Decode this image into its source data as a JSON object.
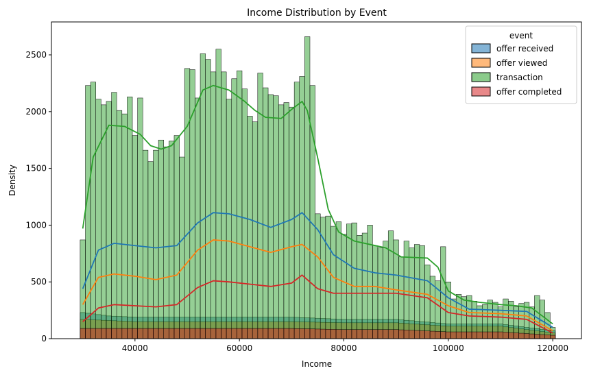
{
  "chart_data": {
    "type": "histogram",
    "title": "Income Distribution by Event",
    "xlabel": "Income",
    "ylabel": "Density",
    "xlim": [
      24000,
      125500
    ],
    "ylim": [
      0,
      2790
    ],
    "xticks": [
      40000,
      60000,
      80000,
      100000,
      120000
    ],
    "yticks": [
      0,
      500,
      1000,
      1500,
      2000,
      2500
    ],
    "bins": {
      "start": 30000,
      "end": 120000,
      "count": 91
    },
    "legend": {
      "title": "event",
      "placement": "upper right"
    },
    "series": [
      {
        "name": "offer received",
        "color": "#1f77b4",
        "kde": [
          [
            30000,
            440
          ],
          [
            33000,
            780
          ],
          [
            36000,
            840
          ],
          [
            40000,
            820
          ],
          [
            44000,
            800
          ],
          [
            48000,
            820
          ],
          [
            52000,
            1020
          ],
          [
            55000,
            1110
          ],
          [
            58000,
            1100
          ],
          [
            62000,
            1050
          ],
          [
            66000,
            980
          ],
          [
            70000,
            1050
          ],
          [
            72000,
            1110
          ],
          [
            75000,
            960
          ],
          [
            78000,
            740
          ],
          [
            82000,
            620
          ],
          [
            86000,
            580
          ],
          [
            90000,
            560
          ],
          [
            96000,
            510
          ],
          [
            100000,
            360
          ],
          [
            104000,
            260
          ],
          [
            110000,
            250
          ],
          [
            115000,
            240
          ],
          [
            120000,
            100
          ]
        ],
        "counts": [
          [
            30000,
            230
          ],
          [
            35000,
            200
          ],
          [
            40000,
            190
          ],
          [
            50000,
            190
          ],
          [
            60000,
            190
          ],
          [
            70000,
            190
          ],
          [
            80000,
            170
          ],
          [
            90000,
            170
          ],
          [
            100000,
            130
          ],
          [
            110000,
            130
          ],
          [
            120000,
            70
          ]
        ]
      },
      {
        "name": "offer viewed",
        "color": "#ff7f0e",
        "kde": [
          [
            30000,
            300
          ],
          [
            33000,
            540
          ],
          [
            36000,
            570
          ],
          [
            40000,
            550
          ],
          [
            44000,
            520
          ],
          [
            48000,
            560
          ],
          [
            52000,
            780
          ],
          [
            55000,
            870
          ],
          [
            58000,
            860
          ],
          [
            62000,
            810
          ],
          [
            66000,
            760
          ],
          [
            70000,
            810
          ],
          [
            72000,
            830
          ],
          [
            75000,
            720
          ],
          [
            78000,
            540
          ],
          [
            82000,
            460
          ],
          [
            86000,
            460
          ],
          [
            90000,
            430
          ],
          [
            96000,
            390
          ],
          [
            100000,
            290
          ],
          [
            104000,
            230
          ],
          [
            110000,
            220
          ],
          [
            115000,
            200
          ],
          [
            120000,
            70
          ]
        ],
        "counts": [
          [
            30000,
            170
          ],
          [
            40000,
            150
          ],
          [
            50000,
            150
          ],
          [
            60000,
            150
          ],
          [
            70000,
            150
          ],
          [
            80000,
            140
          ],
          [
            90000,
            140
          ],
          [
            100000,
            110
          ],
          [
            110000,
            110
          ],
          [
            120000,
            50
          ]
        ]
      },
      {
        "name": "transaction",
        "color": "#2ca02c",
        "kde": [
          [
            30000,
            970
          ],
          [
            32000,
            1600
          ],
          [
            35000,
            1880
          ],
          [
            38000,
            1870
          ],
          [
            41000,
            1800
          ],
          [
            43000,
            1700
          ],
          [
            45000,
            1670
          ],
          [
            47000,
            1700
          ],
          [
            50000,
            1870
          ],
          [
            53000,
            2190
          ],
          [
            55000,
            2230
          ],
          [
            58000,
            2190
          ],
          [
            61000,
            2090
          ],
          [
            63000,
            2010
          ],
          [
            65000,
            1950
          ],
          [
            68000,
            1940
          ],
          [
            70000,
            2020
          ],
          [
            72000,
            2090
          ],
          [
            73000,
            2010
          ],
          [
            75000,
            1590
          ],
          [
            77000,
            1140
          ],
          [
            79000,
            940
          ],
          [
            82000,
            860
          ],
          [
            85000,
            830
          ],
          [
            88000,
            800
          ],
          [
            91000,
            720
          ],
          [
            96000,
            710
          ],
          [
            98000,
            630
          ],
          [
            100000,
            420
          ],
          [
            103000,
            340
          ],
          [
            106000,
            320
          ],
          [
            110000,
            300
          ],
          [
            113000,
            290
          ],
          [
            116000,
            270
          ],
          [
            120000,
            130
          ]
        ],
        "counts": [
          [
            30000,
            870
          ],
          [
            31000,
            2230
          ],
          [
            32000,
            2260
          ],
          [
            33000,
            2110
          ],
          [
            34000,
            2060
          ],
          [
            35000,
            2090
          ],
          [
            36000,
            2170
          ],
          [
            37000,
            2010
          ],
          [
            38000,
            1980
          ],
          [
            39000,
            2130
          ],
          [
            40000,
            1790
          ],
          [
            41000,
            2120
          ],
          [
            42000,
            1660
          ],
          [
            43000,
            1560
          ],
          [
            44000,
            1660
          ],
          [
            45000,
            1750
          ],
          [
            46000,
            1690
          ],
          [
            47000,
            1740
          ],
          [
            48000,
            1790
          ],
          [
            49000,
            1600
          ],
          [
            50000,
            2380
          ],
          [
            51000,
            2370
          ],
          [
            52000,
            2120
          ],
          [
            53000,
            2510
          ],
          [
            54000,
            2460
          ],
          [
            55000,
            2350
          ],
          [
            56000,
            2550
          ],
          [
            57000,
            2350
          ],
          [
            58000,
            2110
          ],
          [
            59000,
            2290
          ],
          [
            60000,
            2360
          ],
          [
            61000,
            2200
          ],
          [
            62000,
            1960
          ],
          [
            63000,
            1910
          ],
          [
            64000,
            2340
          ],
          [
            65000,
            2210
          ],
          [
            66000,
            2150
          ],
          [
            67000,
            2140
          ],
          [
            68000,
            2060
          ],
          [
            69000,
            2080
          ],
          [
            70000,
            2040
          ],
          [
            71000,
            2260
          ],
          [
            72000,
            2310
          ],
          [
            73000,
            2660
          ],
          [
            74000,
            2230
          ],
          [
            75000,
            1100
          ],
          [
            76000,
            1070
          ],
          [
            77000,
            1080
          ],
          [
            78000,
            990
          ],
          [
            79000,
            1030
          ],
          [
            80000,
            920
          ],
          [
            81000,
            1010
          ],
          [
            82000,
            1020
          ],
          [
            83000,
            910
          ],
          [
            84000,
            930
          ],
          [
            85000,
            1000
          ],
          [
            86000,
            820
          ],
          [
            87000,
            800
          ],
          [
            88000,
            860
          ],
          [
            89000,
            950
          ],
          [
            90000,
            870
          ],
          [
            91000,
            720
          ],
          [
            92000,
            860
          ],
          [
            93000,
            800
          ],
          [
            94000,
            830
          ],
          [
            95000,
            820
          ],
          [
            96000,
            650
          ],
          [
            97000,
            550
          ],
          [
            98000,
            510
          ],
          [
            99000,
            810
          ],
          [
            100000,
            500
          ],
          [
            101000,
            350
          ],
          [
            102000,
            390
          ],
          [
            103000,
            370
          ],
          [
            104000,
            380
          ],
          [
            105000,
            330
          ],
          [
            106000,
            290
          ],
          [
            107000,
            300
          ],
          [
            108000,
            340
          ],
          [
            109000,
            320
          ],
          [
            110000,
            280
          ],
          [
            111000,
            350
          ],
          [
            112000,
            330
          ],
          [
            113000,
            280
          ],
          [
            114000,
            310
          ],
          [
            115000,
            320
          ],
          [
            116000,
            280
          ],
          [
            117000,
            380
          ],
          [
            118000,
            340
          ],
          [
            119000,
            230
          ],
          [
            120000,
            100
          ]
        ]
      },
      {
        "name": "offer completed",
        "color": "#d62728",
        "kde": [
          [
            30000,
            150
          ],
          [
            33000,
            270
          ],
          [
            36000,
            300
          ],
          [
            40000,
            290
          ],
          [
            44000,
            280
          ],
          [
            48000,
            300
          ],
          [
            52000,
            450
          ],
          [
            55000,
            510
          ],
          [
            58000,
            500
          ],
          [
            62000,
            480
          ],
          [
            66000,
            460
          ],
          [
            70000,
            490
          ],
          [
            72000,
            560
          ],
          [
            75000,
            440
          ],
          [
            78000,
            400
          ],
          [
            82000,
            400
          ],
          [
            86000,
            400
          ],
          [
            90000,
            400
          ],
          [
            96000,
            360
          ],
          [
            100000,
            230
          ],
          [
            104000,
            200
          ],
          [
            110000,
            190
          ],
          [
            115000,
            170
          ],
          [
            120000,
            50
          ]
        ],
        "counts": [
          [
            30000,
            90
          ],
          [
            40000,
            90
          ],
          [
            50000,
            90
          ],
          [
            60000,
            90
          ],
          [
            70000,
            90
          ],
          [
            80000,
            80
          ],
          [
            90000,
            80
          ],
          [
            100000,
            60
          ],
          [
            110000,
            60
          ],
          [
            120000,
            30
          ]
        ]
      }
    ]
  }
}
